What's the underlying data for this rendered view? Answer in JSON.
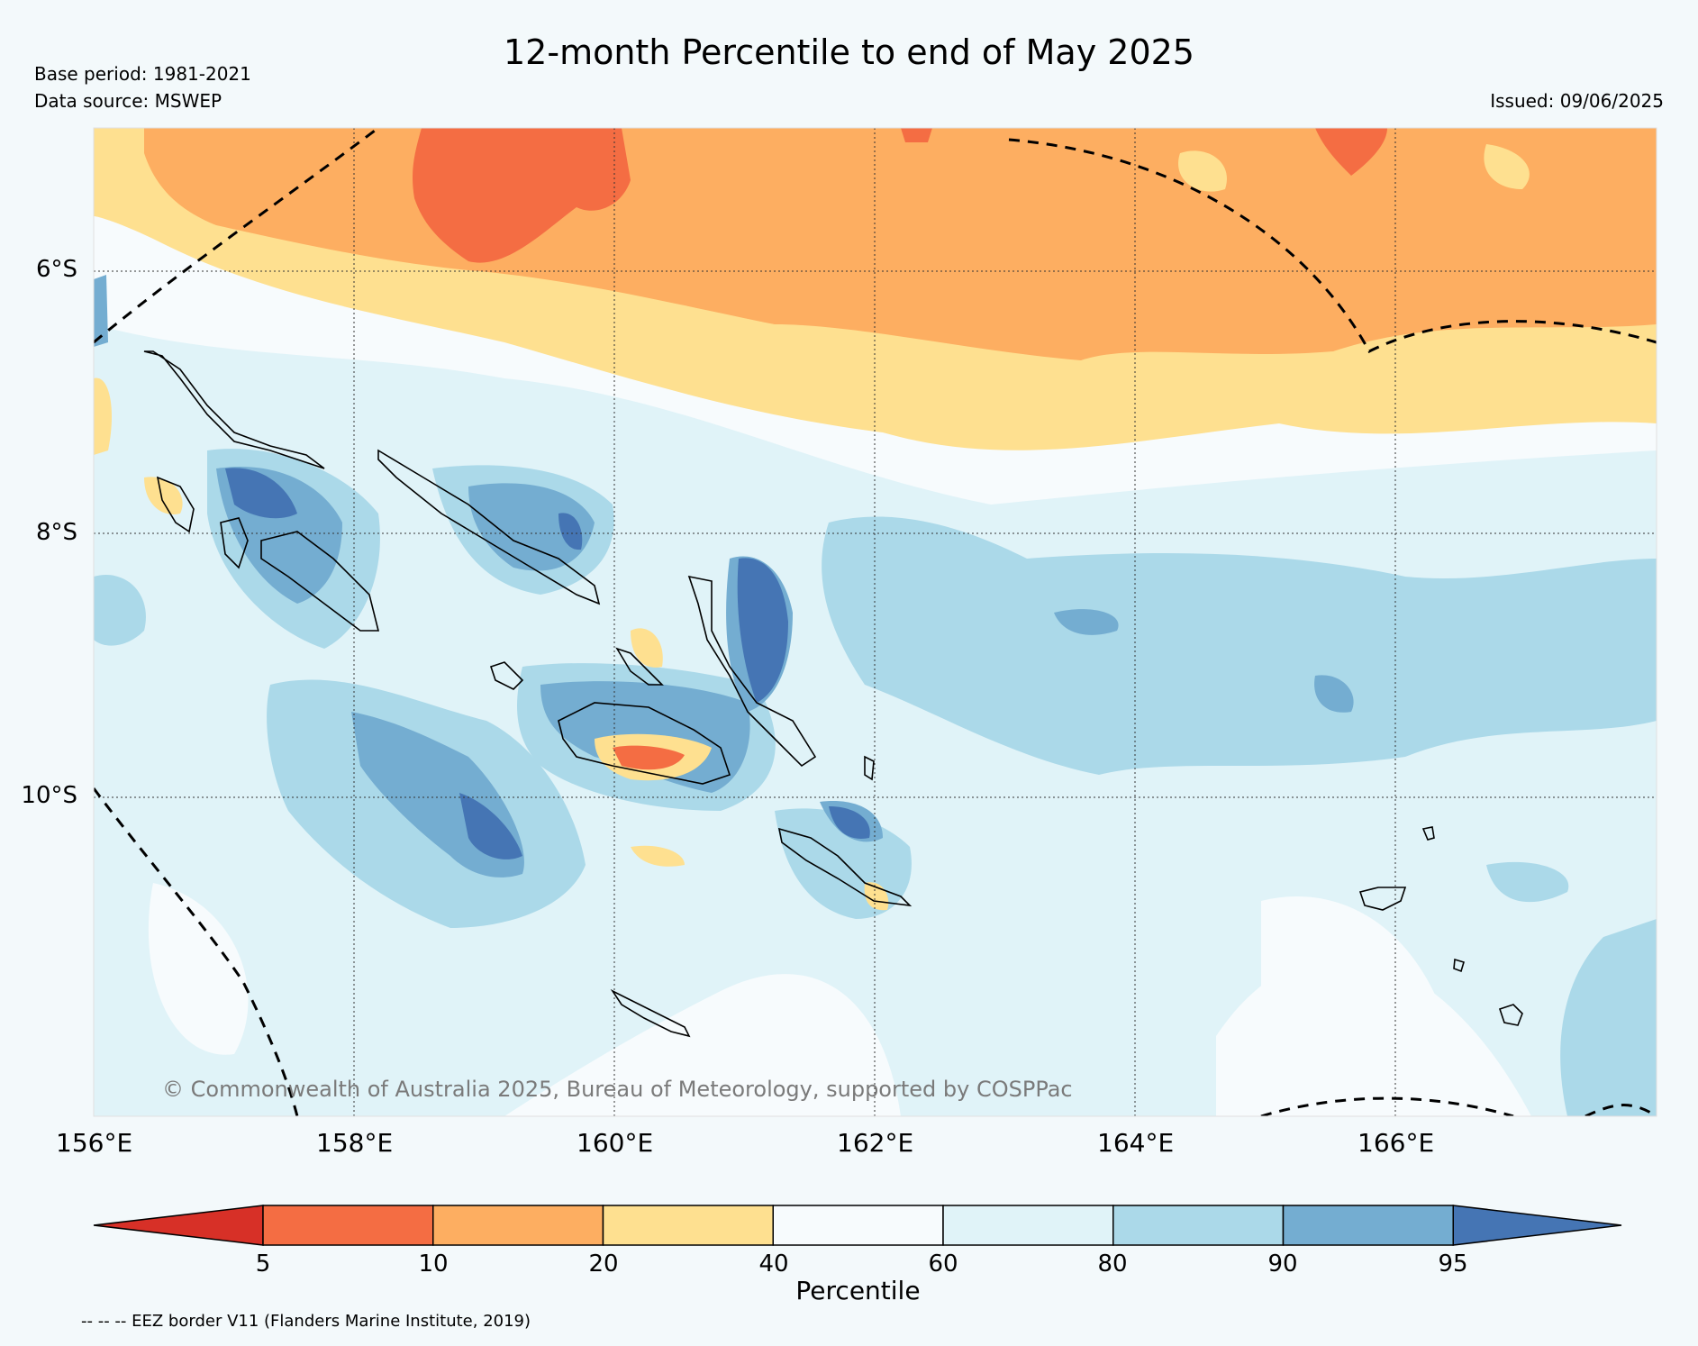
{
  "title": "12-month Percentile to end of May 2025",
  "base_period": "Base period: 1981-2021",
  "data_source": "Data source: MSWEP",
  "issued": "Issued: 09/06/2025",
  "copyright": "© Commonwealth of Australia 2025, Bureau of Meteorology, supported by COSPPac",
  "lat_labels": [
    "6°S",
    "8°S",
    "10°S"
  ],
  "lon_labels": [
    "156°E",
    "158°E",
    "160°E",
    "162°E",
    "164°E",
    "166°E"
  ],
  "colorbar": {
    "label": "Percentile",
    "ticks": [
      "5",
      "10",
      "20",
      "40",
      "60",
      "80",
      "90",
      "95"
    ],
    "colors": [
      "#d73027",
      "#f46d43",
      "#fdae61",
      "#fee090",
      "#f7fbfd",
      "#e0f3f8",
      "#abd9e9",
      "#74add1",
      "#4575b4"
    ]
  },
  "footnote": "-- -- -- EEZ border V11 (Flanders Marine Institute, 2019)"
}
